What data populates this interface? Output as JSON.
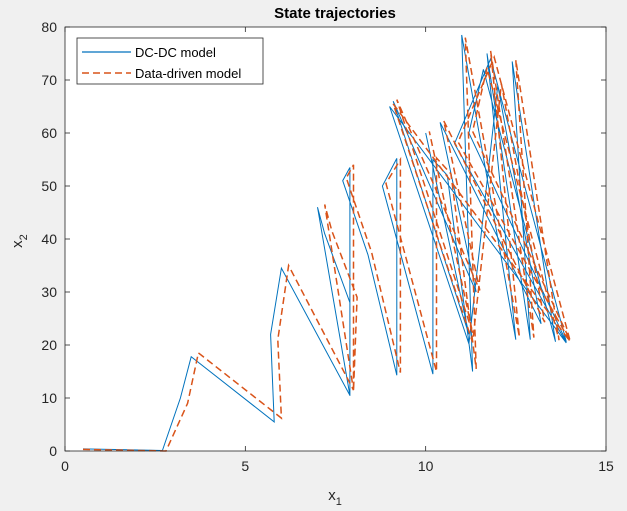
{
  "chart_data": {
    "type": "line",
    "title": "State trajectories",
    "xlabel": "x",
    "xlabel_sub": "1",
    "ylabel": "x",
    "ylabel_sub": "2",
    "xlim": [
      0,
      15
    ],
    "ylim": [
      0,
      80
    ],
    "xticks": [
      0,
      5,
      10,
      15
    ],
    "yticks": [
      0,
      10,
      20,
      30,
      40,
      50,
      60,
      70,
      80
    ],
    "grid": false,
    "legend_position": "top-left",
    "series": [
      {
        "name": "DC-DC model",
        "color": "#0072BD",
        "style": "solid",
        "x": [
          0.5,
          2.7,
          3.2,
          3.5,
          5.8,
          5.7,
          6.0,
          7.9,
          7.0,
          7.2,
          7.9,
          7.9,
          7.9,
          7.7,
          8.4,
          9.2,
          9.2,
          8.8,
          10.2,
          10.2,
          10.6,
          11.3,
          11.0,
          12.5,
          11.7,
          12.9,
          12.4,
          13.6,
          11.6,
          11.2,
          13.9,
          11.8,
          10.8,
          13.9,
          9.0,
          11.2,
          12.0,
          13.2,
          10.4,
          11.4,
          9.1,
          11.2,
          10.0
        ],
        "y": [
          0.4,
          0.1,
          10.0,
          17.8,
          5.5,
          22.0,
          34.5,
          10.5,
          46.0,
          41.0,
          28.0,
          10.4,
          53.5,
          51.0,
          37.0,
          14.3,
          55.2,
          50.0,
          14.5,
          55.0,
          52.0,
          15.0,
          78.5,
          21.0,
          75.0,
          21.0,
          73.5,
          20.6,
          72.0,
          60.0,
          20.6,
          74.0,
          58.0,
          20.4,
          65.0,
          20.2,
          69.0,
          24.0,
          62.0,
          30.0,
          66.0,
          22.0,
          60.0
        ]
      },
      {
        "name": "Data-driven model",
        "color": "#D95319",
        "style": "dashed",
        "x": [
          0.5,
          2.8,
          3.4,
          3.7,
          6.0,
          5.9,
          6.2,
          8.0,
          7.2,
          7.4,
          8.1,
          8.0,
          8.0,
          7.8,
          8.5,
          9.3,
          9.3,
          8.9,
          10.3,
          10.3,
          10.7,
          11.4,
          11.1,
          12.6,
          11.8,
          13.0,
          12.5,
          13.7,
          11.7,
          11.3,
          14.0,
          11.9,
          10.9,
          14.0,
          9.1,
          11.3,
          12.1,
          13.3,
          10.5,
          11.5,
          9.2,
          11.3,
          10.1
        ],
        "y": [
          0.3,
          0.0,
          9.0,
          18.5,
          6.2,
          21.0,
          35.0,
          11.5,
          46.5,
          41.5,
          29.0,
          11.3,
          54.0,
          51.5,
          37.5,
          14.8,
          55.0,
          50.5,
          15.0,
          55.3,
          52.3,
          15.5,
          78.0,
          21.5,
          75.5,
          21.4,
          73.8,
          20.9,
          72.3,
          60.3,
          20.9,
          74.3,
          58.3,
          20.7,
          65.5,
          20.5,
          69.3,
          24.3,
          62.3,
          30.3,
          66.3,
          22.3,
          60.3
        ]
      }
    ]
  }
}
